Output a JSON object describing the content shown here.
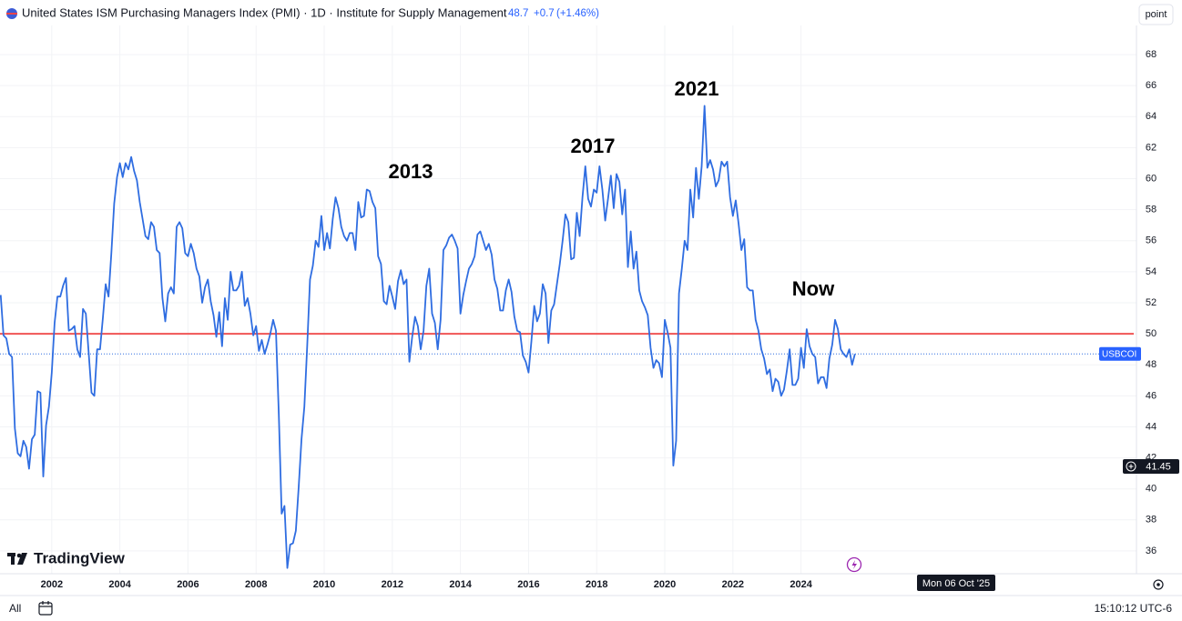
{
  "chart_data": {
    "type": "line",
    "title": "United States ISM Purchasing Managers Index (PMI) · 1D · Institute for Supply Management",
    "last_price": 48.7,
    "change": {
      "value": 0.7,
      "label": "+0.7"
    },
    "change_pct": {
      "value": 1.46,
      "label": "(+1.46%)"
    },
    "scale_mode": "point",
    "symbol": "USBCOI",
    "logo": "TradingView",
    "range_button": "All",
    "clock": "15:10:12 UTC-6",
    "crosshair": {
      "price": 41.45,
      "date": "Mon 06 Oct '25"
    },
    "reference_line": {
      "value": 50,
      "color": "#f05454"
    },
    "annotations": [
      "2013",
      "2017",
      "2021",
      "Now"
    ],
    "grid": true,
    "xlim": [
      2000.48,
      2033.85
    ],
    "ylim": [
      34.53,
      69.88
    ],
    "xticks": [
      2002,
      2004,
      2006,
      2008,
      2010,
      2012,
      2014,
      2016,
      2018,
      2020,
      2022,
      2024
    ],
    "yticks": [
      36,
      38,
      40,
      42,
      44,
      46,
      48,
      50,
      52,
      54,
      56,
      58,
      60,
      62,
      64,
      66,
      68
    ],
    "x": [
      2000.5,
      2000.583,
      2000.667,
      2000.75,
      2000.833,
      2000.917,
      2001,
      2001.083,
      2001.167,
      2001.25,
      2001.333,
      2001.417,
      2001.5,
      2001.583,
      2001.667,
      2001.75,
      2001.833,
      2001.917,
      2002,
      2002.083,
      2002.167,
      2002.25,
      2002.333,
      2002.417,
      2002.5,
      2002.583,
      2002.667,
      2002.75,
      2002.833,
      2002.917,
      2003,
      2003.083,
      2003.167,
      2003.25,
      2003.333,
      2003.417,
      2003.5,
      2003.583,
      2003.667,
      2003.75,
      2003.833,
      2003.917,
      2004,
      2004.083,
      2004.167,
      2004.25,
      2004.333,
      2004.417,
      2004.5,
      2004.583,
      2004.667,
      2004.75,
      2004.833,
      2004.917,
      2005,
      2005.083,
      2005.167,
      2005.25,
      2005.333,
      2005.417,
      2005.5,
      2005.583,
      2005.667,
      2005.75,
      2005.833,
      2005.917,
      2006,
      2006.083,
      2006.167,
      2006.25,
      2006.333,
      2006.417,
      2006.5,
      2006.583,
      2006.667,
      2006.75,
      2006.833,
      2006.917,
      2007,
      2007.083,
      2007.167,
      2007.25,
      2007.333,
      2007.417,
      2007.5,
      2007.583,
      2007.667,
      2007.75,
      2007.833,
      2007.917,
      2008,
      2008.083,
      2008.167,
      2008.25,
      2008.333,
      2008.417,
      2008.5,
      2008.583,
      2008.667,
      2008.75,
      2008.833,
      2008.917,
      2009,
      2009.083,
      2009.167,
      2009.25,
      2009.333,
      2009.417,
      2009.5,
      2009.583,
      2009.667,
      2009.75,
      2009.833,
      2009.917,
      2010,
      2010.083,
      2010.167,
      2010.25,
      2010.333,
      2010.417,
      2010.5,
      2010.583,
      2010.667,
      2010.75,
      2010.833,
      2010.917,
      2011,
      2011.083,
      2011.167,
      2011.25,
      2011.333,
      2011.417,
      2011.5,
      2011.583,
      2011.667,
      2011.75,
      2011.833,
      2011.917,
      2012,
      2012.083,
      2012.167,
      2012.25,
      2012.333,
      2012.417,
      2012.5,
      2012.583,
      2012.667,
      2012.75,
      2012.833,
      2012.917,
      2013,
      2013.083,
      2013.167,
      2013.25,
      2013.333,
      2013.417,
      2013.5,
      2013.583,
      2013.667,
      2013.75,
      2013.833,
      2013.917,
      2014,
      2014.083,
      2014.167,
      2014.25,
      2014.333,
      2014.417,
      2014.5,
      2014.583,
      2014.667,
      2014.75,
      2014.833,
      2014.917,
      2015,
      2015.083,
      2015.167,
      2015.25,
      2015.333,
      2015.417,
      2015.5,
      2015.583,
      2015.667,
      2015.75,
      2015.833,
      2015.917,
      2016,
      2016.083,
      2016.167,
      2016.25,
      2016.333,
      2016.417,
      2016.5,
      2016.583,
      2016.667,
      2016.75,
      2016.833,
      2016.917,
      2017,
      2017.083,
      2017.167,
      2017.25,
      2017.333,
      2017.417,
      2017.5,
      2017.583,
      2017.667,
      2017.75,
      2017.833,
      2017.917,
      2018,
      2018.083,
      2018.167,
      2018.25,
      2018.333,
      2018.417,
      2018.5,
      2018.583,
      2018.667,
      2018.75,
      2018.833,
      2018.917,
      2019,
      2019.083,
      2019.167,
      2019.25,
      2019.333,
      2019.417,
      2019.5,
      2019.583,
      2019.667,
      2019.75,
      2019.833,
      2019.917,
      2020,
      2020.083,
      2020.167,
      2020.25,
      2020.333,
      2020.417,
      2020.5,
      2020.583,
      2020.667,
      2020.75,
      2020.833,
      2020.917,
      2021,
      2021.083,
      2021.167,
      2021.25,
      2021.333,
      2021.417,
      2021.5,
      2021.583,
      2021.667,
      2021.75,
      2021.833,
      2021.917,
      2022,
      2022.083,
      2022.167,
      2022.25,
      2022.333,
      2022.417,
      2022.5,
      2022.583,
      2022.667,
      2022.75,
      2022.833,
      2022.917,
      2023,
      2023.083,
      2023.167,
      2023.25,
      2023.333,
      2023.417,
      2023.5,
      2023.583,
      2023.667,
      2023.75,
      2023.833,
      2023.917,
      2024,
      2024.083,
      2024.167,
      2024.25,
      2024.333,
      2024.417,
      2024.5,
      2024.583,
      2024.667,
      2024.75,
      2024.833,
      2024.917,
      2025,
      2025.083,
      2025.167,
      2025.25,
      2025.333,
      2025.417,
      2025.5,
      2025.583
    ],
    "series": [
      {
        "name": "USBCOI",
        "color": "#2f6de1",
        "values": [
          52.5,
          49.9,
          49.7,
          48.7,
          48.5,
          43.9,
          42.3,
          42.1,
          43.1,
          42.7,
          41.3,
          43.2,
          43.5,
          46.3,
          46.2,
          40.8,
          44.1,
          45.3,
          47.5,
          50.7,
          52.4,
          52.4,
          53.1,
          53.6,
          50.2,
          50.3,
          50.5,
          49.0,
          48.5,
          51.6,
          51.3,
          48.8,
          46.2,
          46.0,
          49.0,
          49.0,
          51.0,
          53.2,
          52.4,
          55.2,
          58.4,
          60.1,
          61.0,
          60.1,
          61.0,
          60.6,
          61.4,
          60.5,
          59.9,
          58.5,
          57.4,
          56.3,
          56.1,
          57.2,
          56.9,
          55.4,
          55.2,
          52.3,
          50.8,
          52.6,
          53.0,
          52.6,
          56.9,
          57.2,
          56.8,
          55.2,
          55.0,
          55.8,
          55.2,
          54.2,
          53.7,
          52.0,
          53.0,
          53.5,
          52.1,
          51.2,
          49.8,
          51.4,
          49.2,
          52.3,
          50.9,
          54.0,
          52.8,
          52.8,
          53.1,
          54.0,
          51.8,
          52.3,
          51.3,
          49.9,
          50.5,
          48.9,
          49.6,
          48.7,
          49.3,
          50.0,
          50.9,
          50.2,
          44.8,
          38.4,
          38.9,
          34.9,
          36.4,
          36.5,
          37.3,
          40.1,
          43.2,
          45.3,
          49.2,
          53.5,
          54.4,
          56.0,
          55.6,
          57.6,
          55.4,
          56.5,
          55.5,
          57.4,
          58.8,
          58.1,
          56.9,
          56.3,
          56.0,
          56.5,
          56.5,
          55.4,
          58.5,
          57.5,
          57.6,
          59.3,
          59.2,
          58.5,
          58.1,
          55.0,
          54.5,
          52.1,
          51.9,
          53.1,
          52.4,
          51.6,
          53.4,
          54.1,
          53.2,
          53.5,
          48.2,
          49.8,
          51.1,
          50.5,
          49.0,
          50.2,
          53.1,
          54.2,
          51.3,
          50.7,
          49.0,
          50.9,
          55.4,
          55.7,
          56.2,
          56.4,
          56.0,
          55.5,
          51.3,
          52.5,
          53.4,
          54.2,
          54.5,
          55.0,
          56.4,
          56.6,
          56.0,
          55.4,
          55.8,
          55.1,
          53.5,
          52.9,
          51.5,
          51.5,
          52.8,
          53.5,
          52.7,
          51.1,
          50.2,
          50.1,
          48.6,
          48.2,
          47.5,
          49.5,
          51.8,
          50.8,
          51.3,
          53.2,
          52.6,
          49.4,
          51.5,
          51.9,
          53.2,
          54.5,
          56.0,
          57.7,
          57.2,
          54.8,
          54.9,
          57.8,
          56.3,
          58.8,
          60.8,
          58.7,
          58.2,
          59.3,
          59.1,
          60.8,
          59.3,
          57.3,
          58.7,
          60.2,
          58.1,
          60.3,
          59.8,
          57.7,
          59.3,
          54.3,
          56.6,
          54.2,
          55.3,
          52.8,
          52.1,
          51.7,
          51.2,
          49.1,
          47.8,
          48.3,
          48.1,
          47.2,
          50.9,
          50.1,
          49.1,
          41.5,
          43.1,
          52.6,
          54.2,
          56.0,
          55.4,
          59.3,
          57.5,
          60.7,
          58.7,
          60.8,
          64.7,
          60.7,
          61.2,
          60.6,
          59.5,
          59.9,
          61.1,
          60.8,
          61.1,
          58.8,
          57.6,
          58.6,
          57.1,
          55.4,
          56.1,
          53.0,
          52.8,
          52.8,
          50.9,
          50.2,
          49.0,
          48.4,
          47.4,
          47.7,
          46.3,
          47.1,
          46.9,
          46.0,
          46.4,
          47.6,
          49.0,
          46.7,
          46.7,
          47.1,
          49.1,
          47.8,
          50.3,
          49.2,
          48.7,
          48.5,
          46.8,
          47.2,
          47.2,
          46.5,
          48.4,
          49.3,
          50.9,
          50.3,
          49.0,
          48.7,
          48.5,
          49.0,
          48.0,
          48.7
        ]
      }
    ]
  }
}
